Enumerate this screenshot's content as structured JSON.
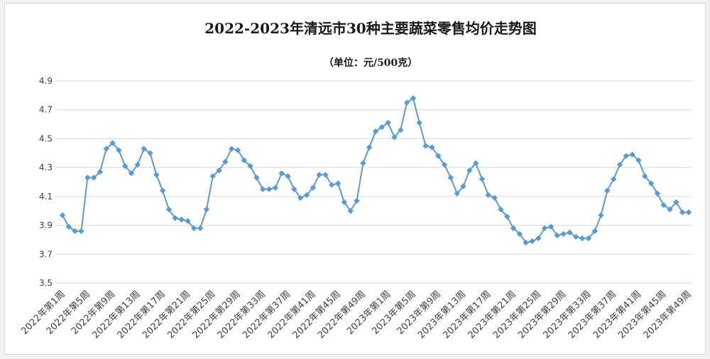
{
  "chart_data": {
    "type": "line",
    "title": "2022-2023年清远市30种主要蔬菜零售均价走势图",
    "subtitle": "（单位：元/500克）",
    "ylim": [
      3.5,
      4.9
    ],
    "yticks": [
      "3.5",
      "3.7",
      "3.9",
      "4.1",
      "4.3",
      "4.5",
      "4.7",
      "4.9"
    ],
    "grid": true,
    "legend": "none",
    "color": "#5b9bd5",
    "tick_labels": [
      "2022年第1周",
      "2022年第5周",
      "2022年第9周",
      "2022年第13周",
      "2022年第17周",
      "2022年第21周",
      "2022年第25周",
      "2022年第29周",
      "2022年第33周",
      "2022年第37周",
      "2022年第41周",
      "2022年第45周",
      "2022年第49周",
      "2023年第1周",
      "2023年第5周",
      "2023年第9周",
      "2023年第13周",
      "2023年第17周",
      "2023年第21周",
      "2023年第25周",
      "2023年第29周",
      "2023年第33周",
      "2023年第37周",
      "2023年第41周",
      "2023年第45周",
      "2023年第49周"
    ],
    "series": [
      {
        "values": [
          3.97,
          3.89,
          3.86,
          3.86,
          4.23,
          4.23,
          4.27,
          4.43,
          4.47,
          4.42,
          4.31,
          4.26,
          4.32,
          4.43,
          4.4,
          4.25,
          4.14,
          4.01,
          3.95,
          3.94,
          3.93,
          3.88,
          3.88,
          4.01,
          4.24,
          4.28,
          4.34,
          4.43,
          4.42,
          4.35,
          4.31,
          4.23,
          4.15,
          4.15,
          4.16,
          4.26,
          4.24,
          4.15,
          4.09,
          4.11,
          4.16,
          4.25,
          4.25,
          4.18,
          4.19,
          4.06,
          4.0,
          4.07,
          4.33,
          4.44,
          4.55,
          4.58,
          4.61,
          4.51,
          4.56,
          4.75,
          4.78,
          4.61,
          4.45,
          4.44,
          4.38,
          4.32,
          4.23,
          4.12,
          4.17,
          4.28,
          4.33,
          4.22,
          4.11,
          4.09,
          4.01,
          3.96,
          3.88,
          3.84,
          3.78,
          3.79,
          3.81,
          3.88,
          3.89,
          3.83,
          3.84,
          3.85,
          3.82,
          3.81,
          3.81,
          3.86,
          3.97,
          4.14,
          4.22,
          4.32,
          4.38,
          4.39,
          4.35,
          4.24,
          4.19,
          4.12,
          4.04,
          4.01,
          4.06,
          3.99,
          3.99
        ]
      }
    ]
  }
}
